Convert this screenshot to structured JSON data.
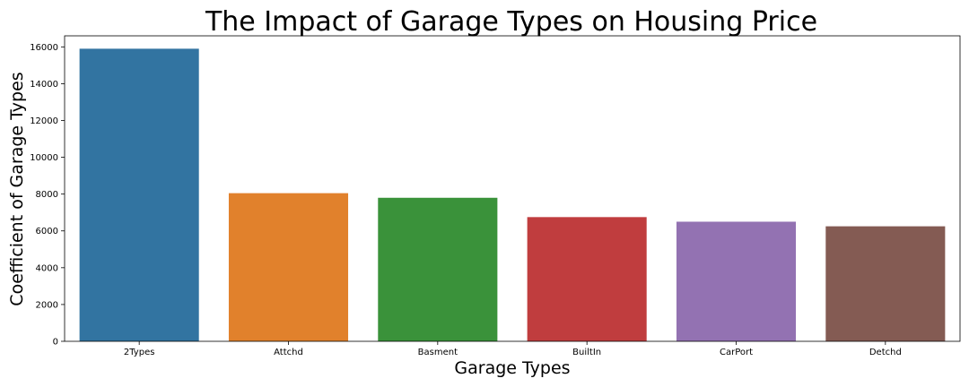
{
  "chart_data": {
    "type": "bar",
    "title": "The Impact of Garage Types on Housing Price",
    "xlabel": "Garage Types",
    "ylabel": "Coefficient of Garage Types",
    "categories": [
      "2Types",
      "Attchd",
      "Basment",
      "BuiltIn",
      "CarPort",
      "Detchd"
    ],
    "values": [
      15900,
      8050,
      7800,
      6750,
      6500,
      6250
    ],
    "colors": [
      "#3274a1",
      "#e1812c",
      "#3a923a",
      "#c03d3e",
      "#9372b2",
      "#845b53"
    ],
    "ylim": [
      0,
      16600
    ],
    "yticks": [
      0,
      2000,
      4000,
      6000,
      8000,
      10000,
      12000,
      14000,
      16000
    ],
    "grid": false,
    "legend": "none"
  }
}
